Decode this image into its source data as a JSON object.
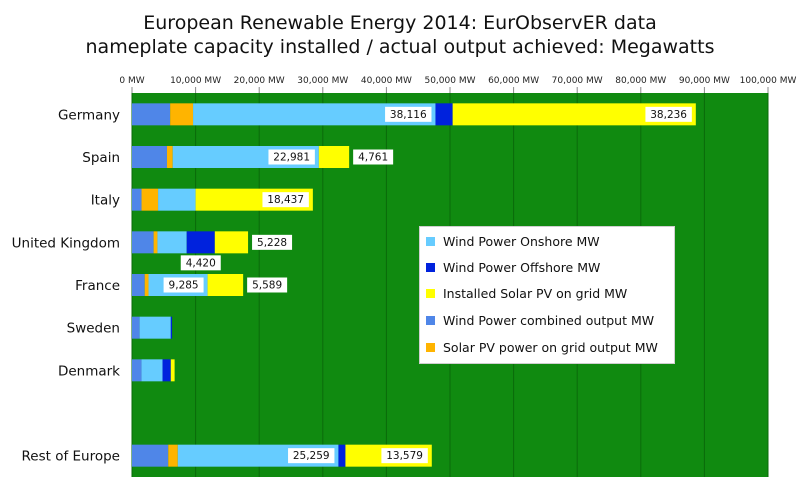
{
  "title": {
    "line1": "European Renewable Energy 2014:  EurObservER data",
    "line2": "nameplate capacity installed / actual output achieved:  Megawatts"
  },
  "chart_data": {
    "type": "bar",
    "orientation": "horizontal",
    "stacked": true,
    "title": "European Renewable Energy 2014:  EurObservER data nameplate capacity installed / actual output achieved:  Megawatts",
    "xlim": [
      0,
      100000
    ],
    "x_ticks": [
      0,
      10000,
      20000,
      30000,
      40000,
      50000,
      60000,
      70000,
      80000,
      90000,
      100000
    ],
    "x_tick_labels": [
      "0 MW",
      "10,000 MW",
      "20,000 MW",
      "30,000 MW",
      "40,000 MW",
      "50,000 MW",
      "60,000 MW",
      "70,000 MW",
      "80,000 MW",
      "90,000 MW",
      "100,000 MW"
    ],
    "x_axis_position": "top",
    "background": "#108a10",
    "grid": true,
    "categories": [
      "Germany",
      "Spain",
      "Italy",
      "United Kingdom",
      "France",
      "Sweden",
      "Denmark",
      "",
      "Rest of Europe"
    ],
    "series": [
      {
        "name": "Wind Power combined output MW",
        "color": "#4f86e8",
        "values": [
          6000,
          5500,
          1500,
          3400,
          2000,
          1200,
          1500,
          0,
          5700
        ]
      },
      {
        "name": "Solar PV power on grid output MW",
        "color": "#ffb400",
        "values": [
          3600,
          900,
          2600,
          600,
          600,
          0,
          0,
          0,
          1500
        ]
      },
      {
        "name": "Wind Power Onshore MW",
        "color": "#66ccff",
        "values": [
          38116,
          22981,
          5900,
          4600,
          9285,
          4900,
          3300,
          0,
          25259
        ]
      },
      {
        "name": "Wind Power Offshore MW",
        "color": "#0022dd",
        "values": [
          2700,
          0,
          0,
          4420,
          0,
          200,
          1300,
          0,
          1100
        ]
      },
      {
        "name": "Installed Solar PV on grid  MW",
        "color": "#ffff00",
        "values": [
          38236,
          4761,
          18437,
          5228,
          5589,
          0,
          600,
          0,
          13579
        ]
      }
    ],
    "data_labels": [
      {
        "category": "Germany",
        "series": "Wind Power Onshore MW",
        "text": "38,116"
      },
      {
        "category": "Germany",
        "series": "Installed Solar PV on grid  MW",
        "text": "38,236"
      },
      {
        "category": "Spain",
        "series": "Wind Power Onshore MW",
        "text": "22,981"
      },
      {
        "category": "Spain",
        "series": "Installed Solar PV on grid  MW",
        "text": "4,761"
      },
      {
        "category": "Italy",
        "series": "Installed Solar PV on grid  MW",
        "text": "18,437"
      },
      {
        "category": "United Kingdom",
        "series": "Installed Solar PV on grid  MW",
        "text": "5,228"
      },
      {
        "category": "United Kingdom",
        "series": "Wind Power Offshore MW",
        "text": "4,420"
      },
      {
        "category": "France",
        "series": "Wind Power Onshore MW",
        "text": "9,285"
      },
      {
        "category": "France",
        "series": "Installed Solar PV on grid  MW",
        "text": "5,589"
      },
      {
        "category": "Rest of Europe",
        "series": "Wind Power Onshore MW",
        "text": "25,259"
      },
      {
        "category": "Rest of Europe",
        "series": "Installed Solar PV on grid  MW",
        "text": "13,579"
      }
    ]
  },
  "legend": {
    "items": [
      {
        "label": "Wind Power Onshore MW",
        "color": "#66ccff"
      },
      {
        "label": "Wind Power Offshore MW",
        "color": "#0022dd"
      },
      {
        "label": "Installed Solar PV on grid  MW",
        "color": "#ffff00"
      },
      {
        "label": "Wind Power combined output MW",
        "color": "#4f86e8"
      },
      {
        "label": "Solar PV power on grid output  MW",
        "color": "#ffb400"
      }
    ]
  }
}
